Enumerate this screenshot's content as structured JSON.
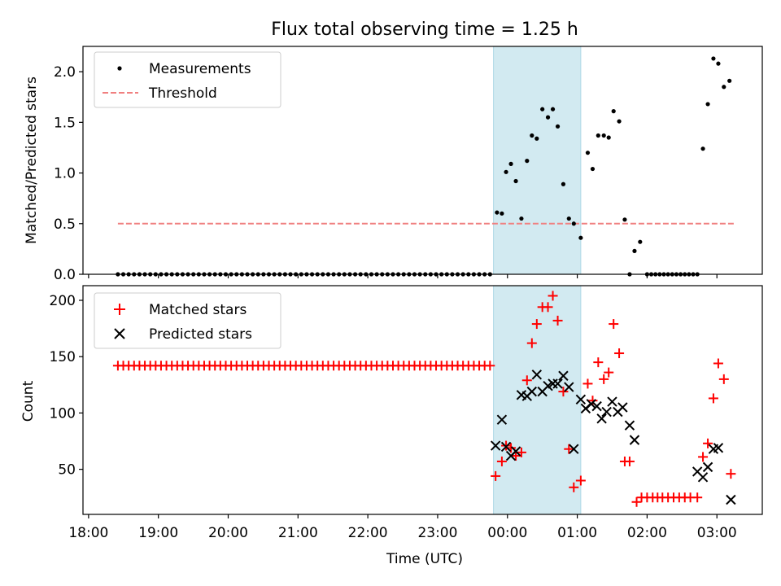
{
  "chart_data": {
    "title": "Flux total observing time = 1.25 h",
    "xlabel": "Time (UTC)",
    "x_unit": "hours since 18:00 UTC",
    "xlim": [
      -0.08,
      9.65
    ],
    "x_ticks": [
      {
        "value": 0,
        "label": "18:00"
      },
      {
        "value": 1,
        "label": "19:00"
      },
      {
        "value": 2,
        "label": "20:00"
      },
      {
        "value": 3,
        "label": "21:00"
      },
      {
        "value": 4,
        "label": "22:00"
      },
      {
        "value": 5,
        "label": "23:00"
      },
      {
        "value": 6,
        "label": "00:00"
      },
      {
        "value": 7,
        "label": "01:00"
      },
      {
        "value": 8,
        "label": "02:00"
      },
      {
        "value": 9,
        "label": "03:00"
      }
    ],
    "shaded_span": [
      5.8,
      7.05
    ],
    "shade_color": "#add8e6",
    "panels": [
      {
        "type": "scatter",
        "ylabel": "Matched/Predicted stars",
        "ylim": [
          0,
          2.25
        ],
        "y_ticks": [
          {
            "value": 0,
            "label": "0.0"
          },
          {
            "value": 0.5,
            "label": "0.5"
          },
          {
            "value": 1.0,
            "label": "1.0"
          },
          {
            "value": 1.5,
            "label": "1.5"
          },
          {
            "value": 2.0,
            "label": "2.0"
          }
        ],
        "legend": {
          "placement": "upper-left",
          "entries": [
            {
              "label": "Measurements",
              "marker": "dot",
              "color": "#000000"
            },
            {
              "label": "Threshold",
              "marker": "dashed-line",
              "color": "#f08080"
            }
          ]
        },
        "threshold": {
          "value": 0.5,
          "x_range": [
            0.42,
            9.25
          ],
          "color": "#f08080"
        },
        "measurements_zero_run": {
          "x_start": 0.42,
          "x_end": 5.75,
          "count": 70,
          "value": 0
        },
        "measurements": [
          [
            5.85,
            0.61
          ],
          [
            5.92,
            0.6
          ],
          [
            5.98,
            1.01
          ],
          [
            6.05,
            1.09
          ],
          [
            6.12,
            0.92
          ],
          [
            6.2,
            0.55
          ],
          [
            6.28,
            1.12
          ],
          [
            6.35,
            1.37
          ],
          [
            6.42,
            1.34
          ],
          [
            6.5,
            1.63
          ],
          [
            6.58,
            1.55
          ],
          [
            6.65,
            1.63
          ],
          [
            6.72,
            1.46
          ],
          [
            6.8,
            0.89
          ],
          [
            6.88,
            0.55
          ],
          [
            6.95,
            0.5
          ],
          [
            7.05,
            0.36
          ],
          [
            7.15,
            1.2
          ],
          [
            7.22,
            1.04
          ],
          [
            7.3,
            1.37
          ],
          [
            7.38,
            1.37
          ],
          [
            7.45,
            1.35
          ],
          [
            7.52,
            1.61
          ],
          [
            7.6,
            1.51
          ],
          [
            7.68,
            0.54
          ],
          [
            7.75,
            0.0
          ],
          [
            7.82,
            0.23
          ],
          [
            7.9,
            0.32
          ],
          [
            8.0,
            0.0
          ],
          [
            8.06,
            0.0
          ],
          [
            8.12,
            0.0
          ],
          [
            8.18,
            0.0
          ],
          [
            8.24,
            0.0
          ],
          [
            8.3,
            0.0
          ],
          [
            8.36,
            0.0
          ],
          [
            8.42,
            0.0
          ],
          [
            8.48,
            0.0
          ],
          [
            8.54,
            0.0
          ],
          [
            8.6,
            0.0
          ],
          [
            8.66,
            0.0
          ],
          [
            8.72,
            0.0
          ],
          [
            8.8,
            1.24
          ],
          [
            8.87,
            1.68
          ],
          [
            8.95,
            2.13
          ],
          [
            9.02,
            2.08
          ],
          [
            9.1,
            1.85
          ],
          [
            9.18,
            1.91
          ]
        ]
      },
      {
        "type": "scatter",
        "ylabel": "Count",
        "ylim": [
          10,
          213
        ],
        "y_ticks": [
          {
            "value": 50,
            "label": "50"
          },
          {
            "value": 100,
            "label": "100"
          },
          {
            "value": 150,
            "label": "150"
          },
          {
            "value": 200,
            "label": "200"
          }
        ],
        "legend": {
          "placement": "upper-left",
          "entries": [
            {
              "label": "Matched stars",
              "marker": "plus",
              "color": "#ff0000"
            },
            {
              "label": "Predicted stars",
              "marker": "x",
              "color": "#000000"
            }
          ]
        },
        "matched_constant_run": {
          "x_start": 0.42,
          "x_end": 5.75,
          "count": 70,
          "value": 142
        },
        "series": [
          {
            "name": "Matched stars",
            "marker": "plus",
            "color": "#ff0000",
            "points": [
              [
                5.83,
                44
              ],
              [
                5.92,
                57
              ],
              [
                5.98,
                71
              ],
              [
                6.05,
                69
              ],
              [
                6.12,
                62
              ],
              [
                6.2,
                65
              ],
              [
                6.28,
                129
              ],
              [
                6.35,
                162
              ],
              [
                6.42,
                179
              ],
              [
                6.5,
                194
              ],
              [
                6.58,
                194
              ],
              [
                6.65,
                204
              ],
              [
                6.72,
                182
              ],
              [
                6.8,
                119
              ],
              [
                6.88,
                68
              ],
              [
                6.95,
                34
              ],
              [
                7.05,
                40
              ],
              [
                7.15,
                126
              ],
              [
                7.22,
                111
              ],
              [
                7.3,
                145
              ],
              [
                7.38,
                130
              ],
              [
                7.45,
                136
              ],
              [
                7.52,
                179
              ],
              [
                7.6,
                153
              ],
              [
                7.68,
                57
              ],
              [
                7.75,
                57
              ],
              [
                7.85,
                21
              ],
              [
                7.92,
                25
              ],
              [
                8.0,
                25
              ],
              [
                8.08,
                25
              ],
              [
                8.15,
                25
              ],
              [
                8.22,
                25
              ],
              [
                8.3,
                25
              ],
              [
                8.38,
                25
              ],
              [
                8.46,
                25
              ],
              [
                8.54,
                25
              ],
              [
                8.62,
                25
              ],
              [
                8.72,
                25
              ],
              [
                8.8,
                61
              ],
              [
                8.87,
                73
              ],
              [
                8.95,
                113
              ],
              [
                9.02,
                144
              ],
              [
                9.1,
                130
              ],
              [
                9.2,
                46
              ]
            ]
          },
          {
            "name": "Predicted stars",
            "marker": "x",
            "color": "#000000",
            "points": [
              [
                5.83,
                71
              ],
              [
                5.92,
                94
              ],
              [
                5.98,
                70
              ],
              [
                6.05,
                62
              ],
              [
                6.12,
                66
              ],
              [
                6.2,
                116
              ],
              [
                6.28,
                115
              ],
              [
                6.35,
                119
              ],
              [
                6.42,
                134
              ],
              [
                6.5,
                119
              ],
              [
                6.58,
                124
              ],
              [
                6.65,
                126
              ],
              [
                6.72,
                126
              ],
              [
                6.8,
                133
              ],
              [
                6.88,
                123
              ],
              [
                6.95,
                68
              ],
              [
                7.05,
                112
              ],
              [
                7.12,
                104
              ],
              [
                7.2,
                108
              ],
              [
                7.28,
                106
              ],
              [
                7.35,
                95
              ],
              [
                7.42,
                101
              ],
              [
                7.5,
                110
              ],
              [
                7.58,
                101
              ],
              [
                7.65,
                105
              ],
              [
                7.75,
                89
              ],
              [
                7.82,
                76
              ],
              [
                8.72,
                48
              ],
              [
                8.8,
                43
              ],
              [
                8.87,
                52
              ],
              [
                8.95,
                68
              ],
              [
                9.02,
                69
              ],
              [
                9.2,
                23
              ]
            ]
          }
        ]
      }
    ]
  }
}
